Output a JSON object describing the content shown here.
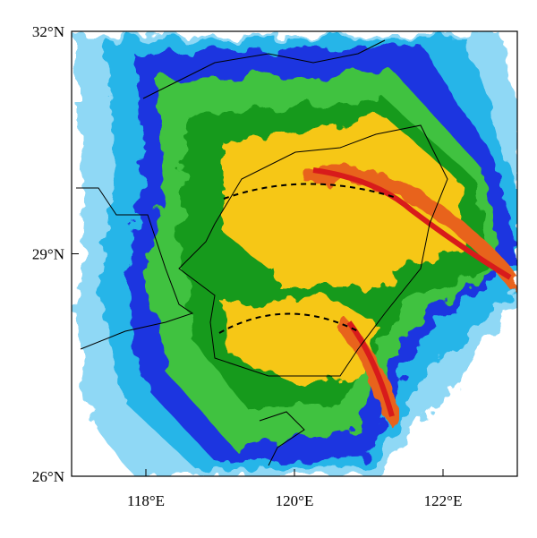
{
  "map_data": {
    "xlim": [
      117,
      123
    ],
    "ylim": [
      26,
      32
    ],
    "xticks": [
      {
        "value": 118,
        "label": "118°E"
      },
      {
        "value": 120,
        "label": "120°E"
      },
      {
        "value": 122,
        "label": "122°E"
      }
    ],
    "yticks": [
      {
        "value": 26,
        "label": "26°N"
      },
      {
        "value": 29,
        "label": "29°N"
      },
      {
        "value": 32,
        "label": "32°N"
      }
    ]
  }
}
